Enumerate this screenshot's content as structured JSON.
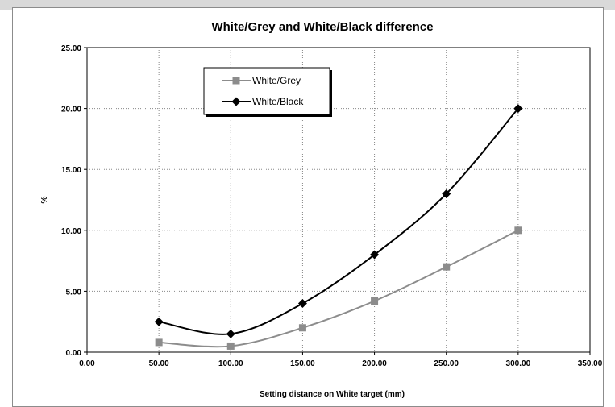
{
  "chart_data": {
    "type": "line",
    "title": "White/Grey and White/Black difference",
    "xlabel": "Setting distance on White target (mm)",
    "ylabel": "%",
    "xlim": [
      0,
      350
    ],
    "ylim": [
      0,
      25
    ],
    "x_ticks": [
      "0.00",
      "50.00",
      "100.00",
      "150.00",
      "200.00",
      "250.00",
      "300.00",
      "350.00"
    ],
    "y_ticks": [
      "0.00",
      "5.00",
      "10.00",
      "15.00",
      "20.00",
      "25.00"
    ],
    "grid": true,
    "legend_position": "top-left",
    "series": [
      {
        "name": "White/Grey",
        "color": "#8c8c8c",
        "marker": "square",
        "x": [
          50,
          100,
          150,
          200,
          250,
          300
        ],
        "y": [
          0.8,
          0.5,
          2.0,
          4.2,
          7.0,
          10.0
        ]
      },
      {
        "name": "White/Black",
        "color": "#000000",
        "marker": "diamond",
        "x": [
          50,
          100,
          150,
          200,
          250,
          300
        ],
        "y": [
          2.5,
          1.5,
          4.0,
          8.0,
          13.0,
          20.0
        ]
      }
    ]
  }
}
